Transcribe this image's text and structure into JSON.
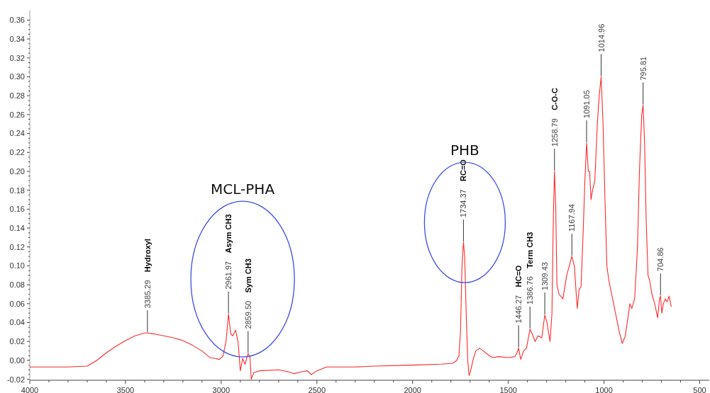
{
  "chart_data": {
    "type": "line",
    "x": [
      4000,
      3900,
      3800,
      3700,
      3650,
      3600,
      3550,
      3500,
      3450,
      3400,
      3385.29,
      3350,
      3300,
      3250,
      3200,
      3150,
      3100,
      3060,
      3030,
      3010,
      2990,
      2975,
      2961.97,
      2950,
      2940,
      2925,
      2912,
      2900,
      2888,
      2875,
      2865,
      2859.5,
      2850,
      2843,
      2830,
      2800,
      2700,
      2650,
      2620,
      2580,
      2550,
      2530,
      2500,
      2450,
      2400,
      2300,
      2200,
      2000,
      1850,
      1790,
      1770,
      1758,
      1750,
      1742,
      1734.37,
      1728,
      1720,
      1712,
      1705,
      1698,
      1685,
      1670,
      1650,
      1630,
      1600,
      1580,
      1550,
      1500,
      1465,
      1455,
      1446.27,
      1435,
      1420,
      1405,
      1386.76,
      1375,
      1360,
      1345,
      1325,
      1309.43,
      1298,
      1282,
      1272,
      1265,
      1258.79,
      1252,
      1246,
      1235,
      1215,
      1195,
      1167.94,
      1155,
      1145,
      1140,
      1130,
      1120,
      1110,
      1100,
      1091.05,
      1082,
      1075,
      1068,
      1060,
      1048,
      1035,
      1025,
      1014.96,
      1005,
      995,
      985,
      975,
      960,
      940,
      920,
      905,
      890,
      875,
      865,
      855,
      840,
      825,
      815,
      803,
      795.81,
      788,
      780,
      770,
      762,
      750,
      735,
      720,
      710,
      704.86,
      698,
      690,
      680,
      670,
      660,
      652,
      648
    ],
    "series": [
      {
        "color": "#ff2a2a",
        "values": [
          -0.007,
          -0.007,
          -0.007,
          -0.006,
          0.0,
          0.008,
          0.015,
          0.021,
          0.026,
          0.029,
          0.029,
          0.028,
          0.026,
          0.024,
          0.021,
          0.016,
          0.01,
          0.003,
          0.002,
          0.001,
          0.005,
          0.02,
          0.049,
          0.028,
          0.026,
          0.032,
          0.02,
          -0.011,
          0.002,
          -0.004,
          0.004,
          0.007,
          0.004,
          -0.02,
          -0.013,
          -0.011,
          -0.01,
          -0.012,
          -0.014,
          -0.012,
          -0.011,
          -0.015,
          -0.011,
          -0.007,
          -0.007,
          -0.007,
          -0.006,
          -0.005,
          -0.004,
          -0.003,
          0.0,
          0.005,
          0.03,
          0.1,
          0.125,
          0.11,
          0.05,
          0.0,
          -0.016,
          -0.012,
          0.0,
          0.01,
          0.013,
          0.01,
          0.005,
          0.003,
          0.004,
          0.003,
          0.004,
          0.008,
          0.013,
          0.001,
          0.01,
          0.013,
          0.033,
          0.028,
          0.02,
          0.026,
          0.024,
          0.048,
          0.04,
          0.02,
          0.05,
          0.15,
          0.2,
          0.16,
          0.08,
          0.07,
          0.065,
          0.09,
          0.11,
          0.1,
          0.07,
          0.055,
          0.075,
          0.078,
          0.13,
          0.19,
          0.23,
          0.2,
          0.2,
          0.17,
          0.18,
          0.19,
          0.25,
          0.28,
          0.3,
          0.25,
          0.17,
          0.1,
          0.085,
          0.07,
          0.05,
          0.03,
          0.018,
          0.025,
          0.045,
          0.06,
          0.055,
          0.065,
          0.12,
          0.2,
          0.26,
          0.27,
          0.23,
          0.15,
          0.09,
          0.085,
          0.07,
          0.06,
          0.045,
          0.065,
          0.068,
          0.05,
          0.06,
          0.065,
          0.062,
          0.068,
          0.06,
          0.057
        ]
      }
    ],
    "xlim": [
      4000,
      450
    ],
    "xticks": [
      4000,
      3500,
      3000,
      2500,
      2000,
      1500,
      1000,
      500
    ],
    "ylim": [
      -0.021,
      0.37
    ],
    "yticks": [
      {
        "value": -0.02,
        "label": "-0.02"
      },
      {
        "value": 0,
        "label": "0.00"
      },
      {
        "value": 0.02,
        "label": "0.02"
      },
      {
        "value": 0.04,
        "label": "0.04"
      },
      {
        "value": 0.06,
        "label": "0.06"
      },
      {
        "value": 0.08,
        "label": "0.08"
      },
      {
        "value": 0.1,
        "label": "0.10"
      },
      {
        "value": 0.12,
        "label": "0.12"
      },
      {
        "value": 0.14,
        "label": "0.14"
      },
      {
        "value": 0.16,
        "label": "0.16"
      },
      {
        "value": 0.18,
        "label": "0.18"
      },
      {
        "value": 0.2,
        "label": "0.20"
      },
      {
        "value": 0.22,
        "label": "0.22"
      },
      {
        "value": 0.24,
        "label": "0.24"
      },
      {
        "value": 0.26,
        "label": "0.26"
      },
      {
        "value": 0.28,
        "label": "0.28"
      },
      {
        "value": 0.3,
        "label": "0.30"
      },
      {
        "value": 0.32,
        "label": "0.32"
      },
      {
        "value": 0.34,
        "label": "0.34"
      },
      {
        "value": 0.36,
        "label": "0.36"
      }
    ],
    "grid": false,
    "marker": "none",
    "line_style": "solid",
    "annotations": [
      "MCL-PHA",
      "PHB",
      "Hydroxyl",
      "Asym CH3",
      "Sym CH3",
      "RC=O",
      "HC=O",
      "Term CH3",
      "C-O-C",
      {
        "text": "3385.29",
        "x": 3385.29,
        "y": 0.029
      },
      {
        "text": "2961.97",
        "x": 2961.97,
        "y": 0.049
      },
      {
        "text": "2859.50",
        "x": 2859.5,
        "y": 0.007
      },
      {
        "text": "1734.37",
        "x": 1734.37,
        "y": 0.125
      },
      {
        "text": "1446.27",
        "x": 1446.27,
        "y": 0.013
      },
      {
        "text": "1386.76",
        "x": 1386.76,
        "y": 0.033
      },
      {
        "text": "1309.43",
        "x": 1309.43,
        "y": 0.048
      },
      {
        "text": "1258.79",
        "x": 1258.79,
        "y": 0.2
      },
      {
        "text": "1167.94",
        "x": 1167.94,
        "y": 0.11
      },
      {
        "text": "1091.05",
        "x": 1091.05,
        "y": 0.23
      },
      {
        "text": "1014.96",
        "x": 1014.96,
        "y": 0.3
      },
      {
        "text": "795.81",
        "x": 795.81,
        "y": 0.27
      },
      {
        "text": "704.86",
        "x": 704.86,
        "y": 0.068
      }
    ]
  }
}
